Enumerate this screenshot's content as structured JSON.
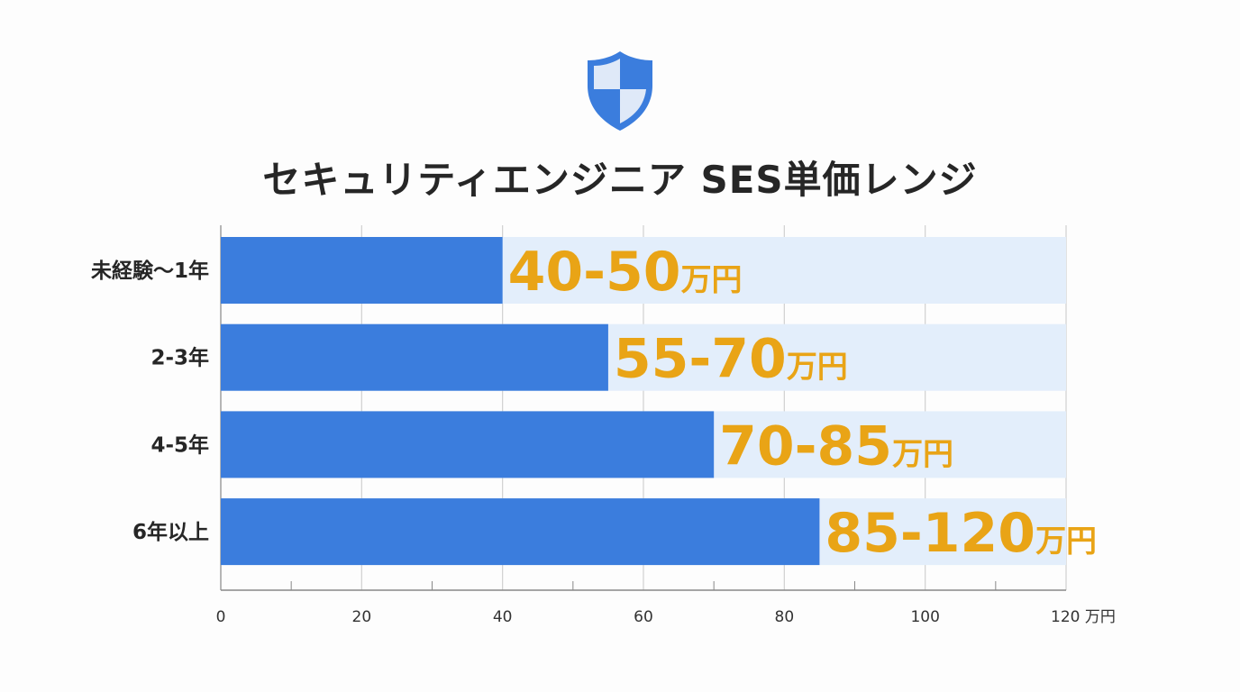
{
  "title": "セキュリティエンジニア SES単価レンジ",
  "icon": "shield-icon",
  "colors": {
    "bar": "#3b7ddd",
    "range_bg": "#e3eefb",
    "label": "#e9a416",
    "grid": "#d0d0d0",
    "axis": "#888888"
  },
  "chart_data": {
    "type": "bar",
    "orientation": "horizontal",
    "title": "セキュリティエンジニア SES単価レンジ",
    "categories": [
      "未経験〜1年",
      "2-3年",
      "4-5年",
      "6年以上"
    ],
    "series": [
      {
        "values": [
          40,
          55,
          70,
          85
        ]
      }
    ],
    "ranges": [
      [
        40,
        50
      ],
      [
        55,
        70
      ],
      [
        70,
        85
      ],
      [
        85,
        120
      ]
    ],
    "data_labels": [
      {
        "value": "40-50",
        "unit": "万円"
      },
      {
        "value": "55-70",
        "unit": "万円"
      },
      {
        "value": "70-85",
        "unit": "万円"
      },
      {
        "value": "85-120",
        "unit": "万円"
      }
    ],
    "xlim": [
      0,
      120
    ],
    "xticks": [
      "0",
      "20",
      "40",
      "60",
      "80",
      "100",
      "120"
    ],
    "xunit": "万円",
    "grid": true
  }
}
